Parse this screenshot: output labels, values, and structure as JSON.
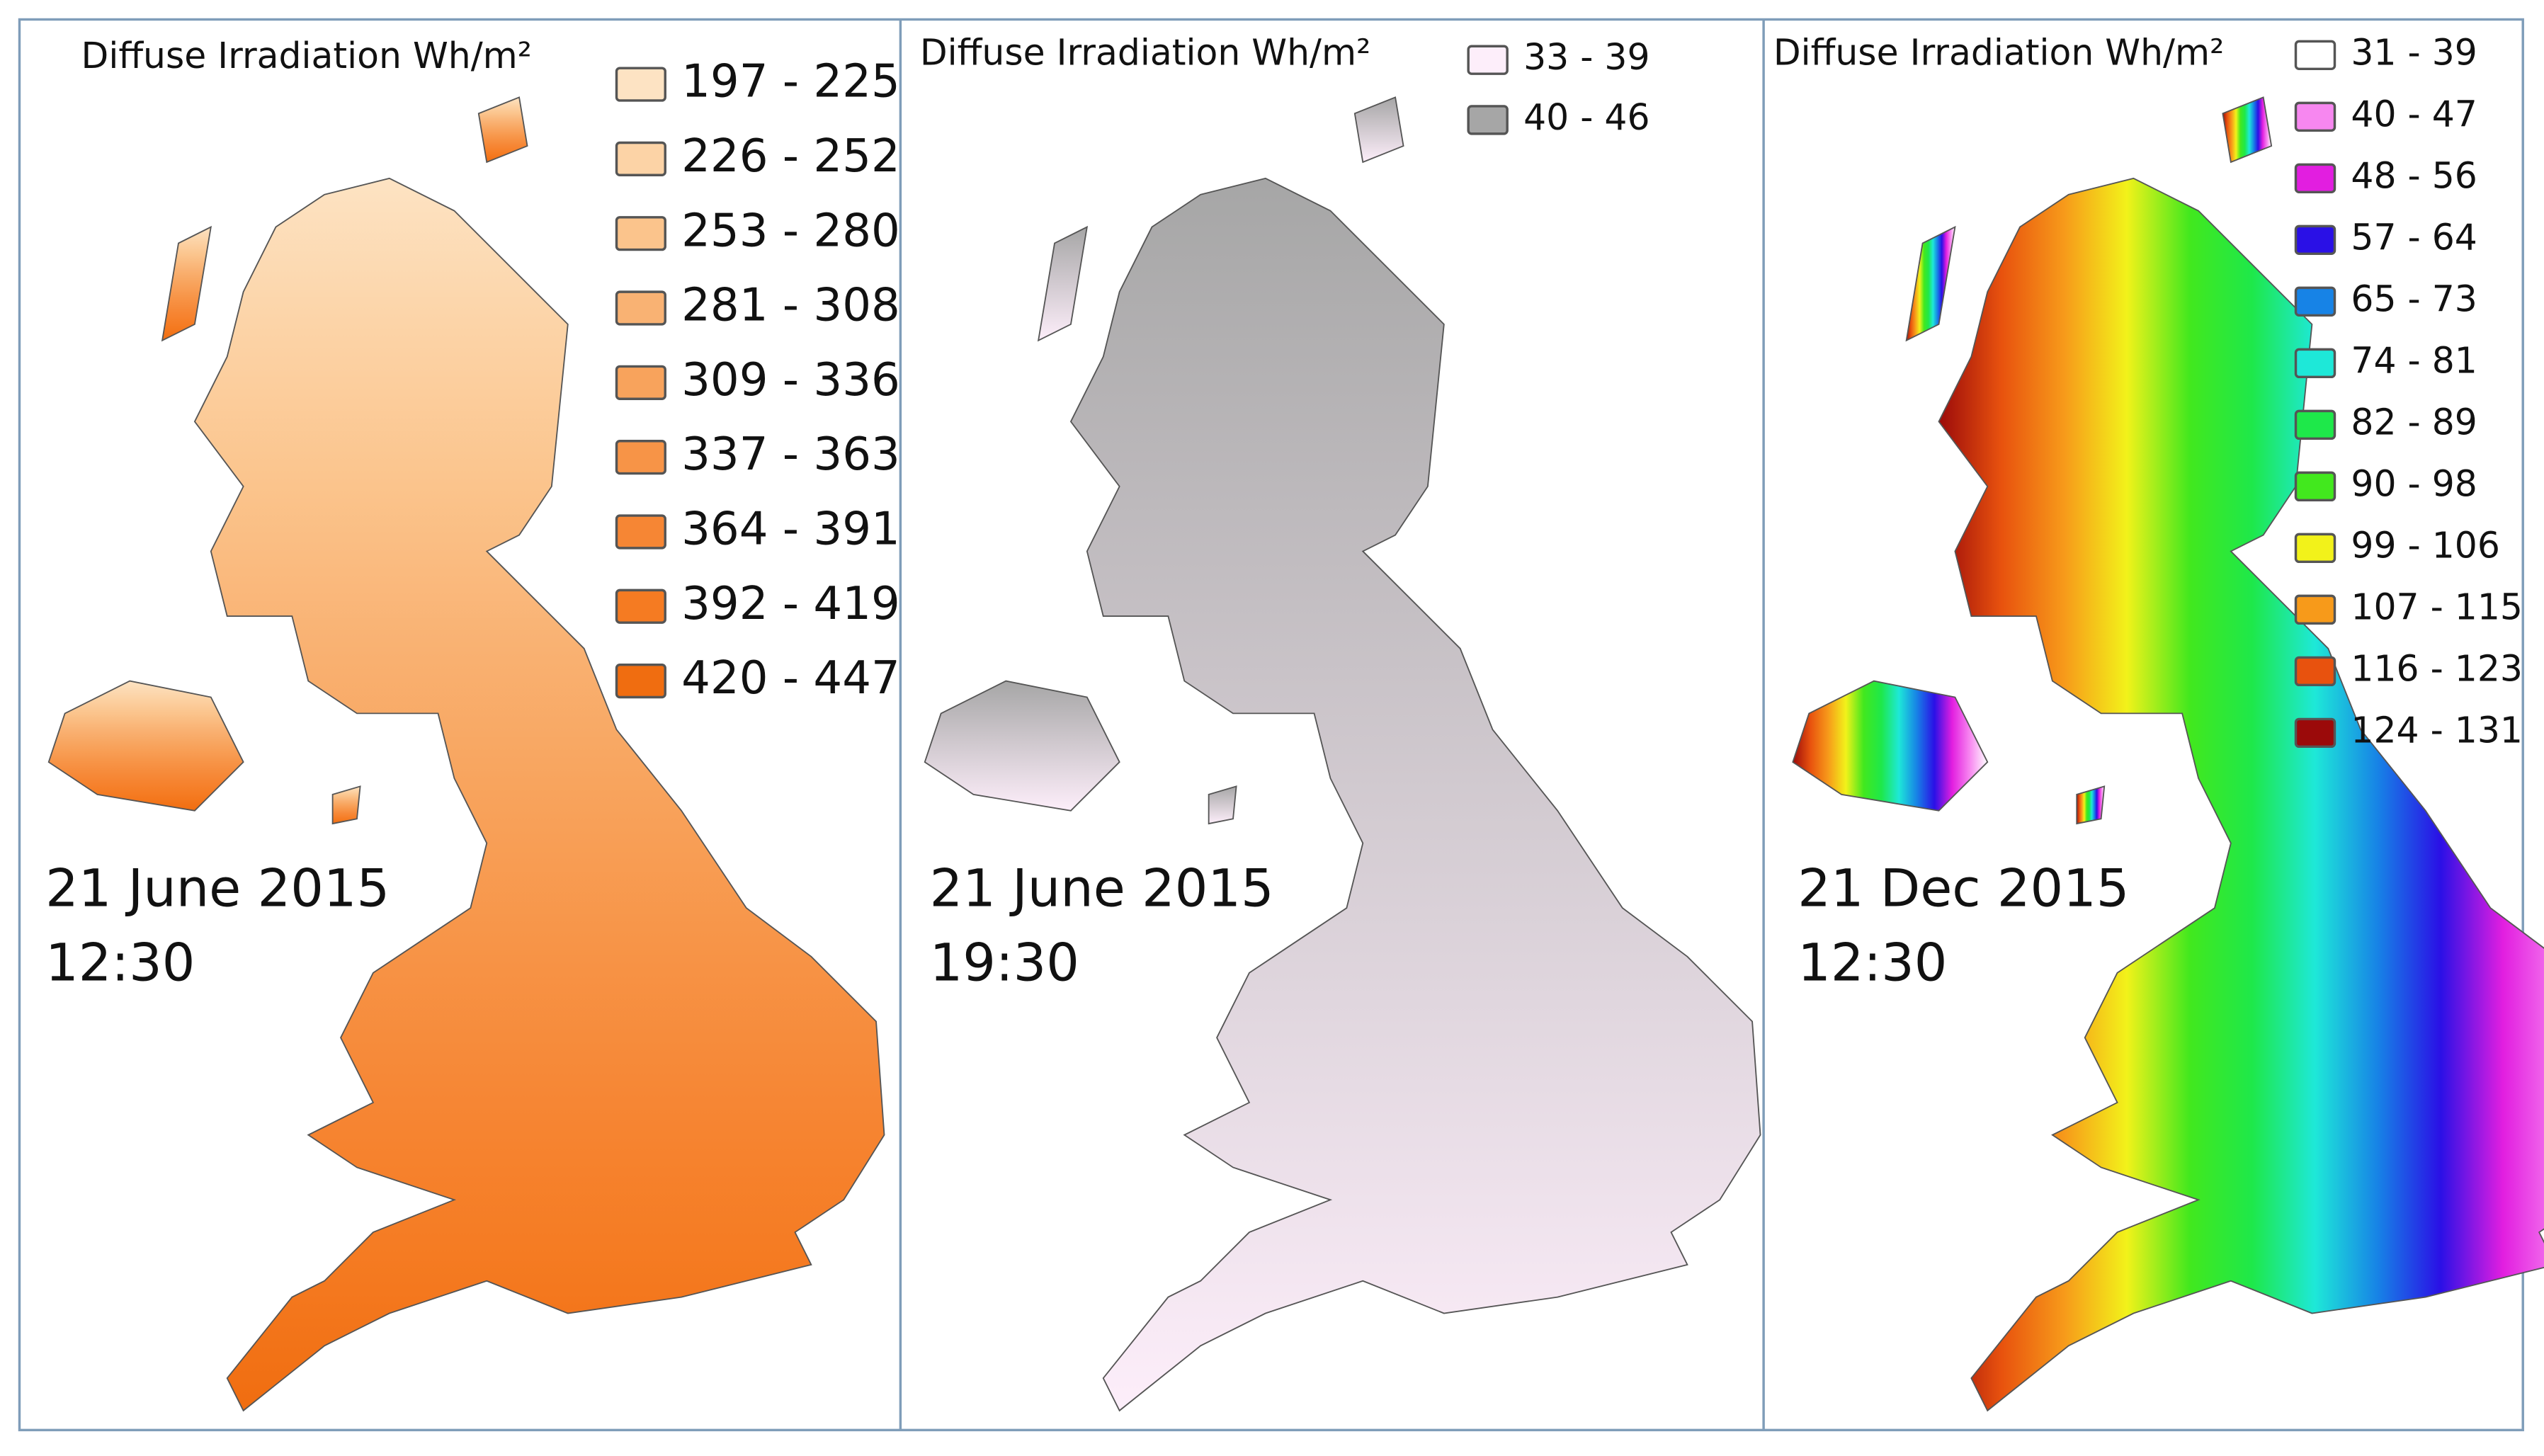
{
  "panels": [
    {
      "title": "Diffuse Irradiation Wh/m²",
      "date": "21 June 2015",
      "time": "12:30",
      "legend": [
        {
          "label": "197 - 225",
          "color": "#fde3c3"
        },
        {
          "label": "226 - 252",
          "color": "#fcd3a6"
        },
        {
          "label": "253 - 280",
          "color": "#fbc48c"
        },
        {
          "label": "281 - 308",
          "color": "#f9b273"
        },
        {
          "label": "309 - 336",
          "color": "#f8a35c"
        },
        {
          "label": "337 - 363",
          "color": "#f79447"
        },
        {
          "label": "364 - 391",
          "color": "#f68634"
        },
        {
          "label": "392 - 419",
          "color": "#f57b22"
        },
        {
          "label": "420 - 447",
          "color": "#f06d10"
        }
      ]
    },
    {
      "title": "Diffuse Irradiation Wh/m²",
      "date": "21 June 2015",
      "time": "19:30",
      "legend": [
        {
          "label": "33 - 39",
          "color": "#fdeefa"
        },
        {
          "label": "40 - 46",
          "color": "#a6a6a6"
        }
      ]
    },
    {
      "title": "Diffuse Irradiation Wh/m²",
      "date": "21 Dec 2015",
      "time": "12:30",
      "legend": [
        {
          "label": "31 - 39",
          "color": "#ffffff"
        },
        {
          "label": "40 - 47",
          "color": "#f787f0"
        },
        {
          "label": "48 - 56",
          "color": "#e21ee0"
        },
        {
          "label": "57 - 64",
          "color": "#2a10e6"
        },
        {
          "label": "65 - 73",
          "color": "#1783e6"
        },
        {
          "label": "74 - 81",
          "color": "#1ee8d8"
        },
        {
          "label": "82 - 89",
          "color": "#1ee84a"
        },
        {
          "label": "90 - 98",
          "color": "#42e81e"
        },
        {
          "label": "99 - 106",
          "color": "#f2f21a"
        },
        {
          "label": "107 - 115",
          "color": "#f79a1a"
        },
        {
          "label": "116 - 123",
          "color": "#e8520e"
        },
        {
          "label": "124 - 131",
          "color": "#9b0a0a"
        }
      ]
    }
  ]
}
